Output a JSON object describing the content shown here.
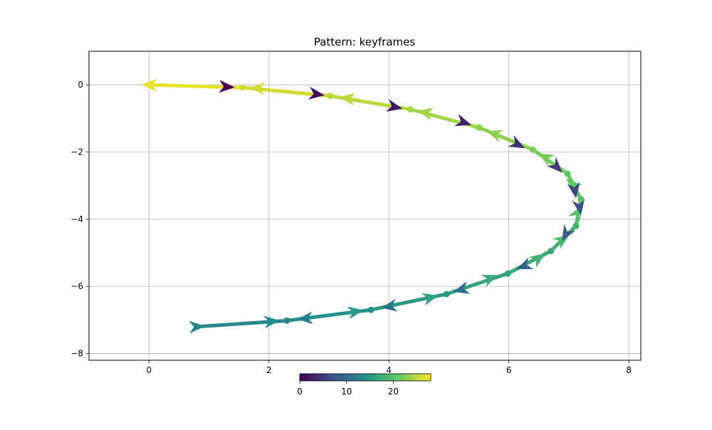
{
  "chart_data": {
    "type": "line",
    "title": "Pattern: keyframes",
    "xlabel": "",
    "ylabel": "",
    "xlim": [
      -1.0,
      8.2
    ],
    "ylim": [
      -8.2,
      1.0
    ],
    "xticks": [
      0,
      2,
      4,
      6,
      8
    ],
    "yticks": [
      0,
      -2,
      -4,
      -6,
      -8
    ],
    "grid": true,
    "colormap": "viridis",
    "colorbar": {
      "ticks": [
        0,
        10,
        20
      ],
      "range": [
        0,
        28
      ],
      "placement": "bottom-center"
    },
    "series": [
      {
        "x": [
          0.0,
          1.56,
          3.02,
          4.36,
          5.5,
          6.4,
          6.98,
          7.2,
          7.12,
          6.7,
          5.98,
          4.96,
          3.7,
          2.3,
          0.8
        ],
        "y": [
          0.0,
          -0.08,
          -0.33,
          -0.73,
          -1.27,
          -1.93,
          -2.65,
          -3.4,
          -4.2,
          -4.95,
          -5.62,
          -6.23,
          -6.7,
          -7.02,
          -7.2
        ],
        "color_values": [
          27,
          26,
          25,
          24,
          23,
          22,
          21,
          20,
          18,
          17,
          16,
          15,
          14,
          13,
          12
        ]
      }
    ],
    "arrows": [
      {
        "x": 0.0,
        "y": 0.0,
        "dir": "backward",
        "c": 27
      },
      {
        "x": 1.3,
        "y": -0.06,
        "dir": "forward",
        "c": 0
      },
      {
        "x": 1.8,
        "y": -0.1,
        "dir": "backward",
        "c": 26
      },
      {
        "x": 2.8,
        "y": -0.28,
        "dir": "forward",
        "c": 1
      },
      {
        "x": 3.3,
        "y": -0.4,
        "dir": "backward",
        "c": 25
      },
      {
        "x": 4.1,
        "y": -0.66,
        "dir": "forward",
        "c": 2
      },
      {
        "x": 4.6,
        "y": -0.82,
        "dir": "backward",
        "c": 24
      },
      {
        "x": 5.25,
        "y": -1.12,
        "dir": "forward",
        "c": 3
      },
      {
        "x": 5.75,
        "y": -1.45,
        "dir": "backward",
        "c": 23
      },
      {
        "x": 6.15,
        "y": -1.78,
        "dir": "forward",
        "c": 4
      },
      {
        "x": 6.6,
        "y": -2.15,
        "dir": "backward",
        "c": 22
      },
      {
        "x": 6.8,
        "y": -2.45,
        "dir": "forward",
        "c": 5
      },
      {
        "x": 7.05,
        "y": -2.95,
        "dir": "backward",
        "c": 21
      },
      {
        "x": 7.1,
        "y": -3.15,
        "dir": "forward",
        "c": 6
      },
      {
        "x": 7.15,
        "y": -3.8,
        "dir": "backward",
        "c": 20
      },
      {
        "x": 7.18,
        "y": -3.65,
        "dir": "forward",
        "c": 7
      },
      {
        "x": 6.9,
        "y": -4.6,
        "dir": "backward",
        "c": 19
      },
      {
        "x": 6.95,
        "y": -4.45,
        "dir": "forward",
        "c": 8
      },
      {
        "x": 6.5,
        "y": -5.15,
        "dir": "backward",
        "c": 18
      },
      {
        "x": 6.25,
        "y": -5.4,
        "dir": "forward",
        "c": 9
      },
      {
        "x": 5.7,
        "y": -5.75,
        "dir": "backward",
        "c": 17
      },
      {
        "x": 5.2,
        "y": -6.1,
        "dir": "forward",
        "c": 10
      },
      {
        "x": 4.7,
        "y": -6.33,
        "dir": "backward",
        "c": 16
      },
      {
        "x": 4.0,
        "y": -6.6,
        "dir": "forward",
        "c": 11
      },
      {
        "x": 3.45,
        "y": -6.75,
        "dir": "backward",
        "c": 15
      },
      {
        "x": 2.6,
        "y": -6.96,
        "dir": "forward",
        "c": 12
      },
      {
        "x": 2.05,
        "y": -7.04,
        "dir": "backward",
        "c": 14
      },
      {
        "x": 0.8,
        "y": -7.2,
        "dir": "backward",
        "c": 13
      }
    ]
  }
}
